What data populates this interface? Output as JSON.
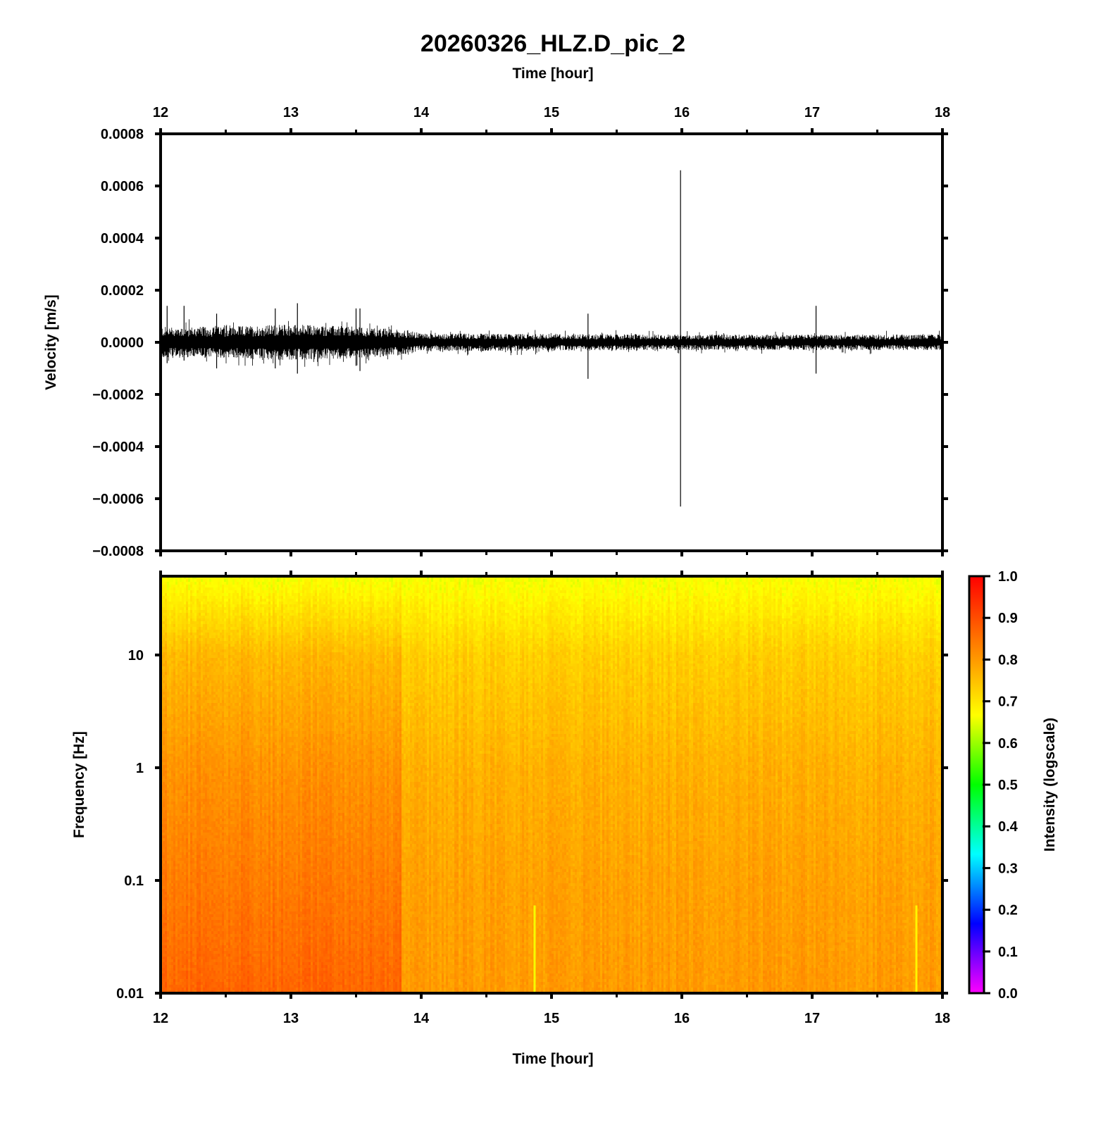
{
  "figure": {
    "title": "20260326_HLZ.D_pic_2",
    "top_xlabel": "Time [hour]",
    "bottom_xlabel": "Time [hour]"
  },
  "chart_data": [
    {
      "type": "line",
      "name": "seismogram",
      "ylabel": "Velocity [m/s]",
      "xlabel": "Time [hour]",
      "xlim": [
        12,
        18
      ],
      "ylim": [
        -0.0008,
        0.0008
      ],
      "x_ticks": [
        12,
        13,
        14,
        15,
        16,
        17,
        18
      ],
      "x_tick_labels": [
        "12",
        "13",
        "14",
        "15",
        "16",
        "17",
        "18"
      ],
      "y_ticks": [
        0.0008,
        0.0006,
        0.0004,
        0.0002,
        0.0,
        -0.0002,
        -0.0004,
        -0.0006,
        -0.0008
      ],
      "y_tick_labels": [
        "0.0008",
        "0.0006",
        "0.0004",
        "0.0002",
        "0.0000",
        "−0.0002",
        "−0.0004",
        "−0.0006",
        "−0.0008"
      ],
      "noise_envelope": {
        "t": [
          12.0,
          12.5,
          13.0,
          13.5,
          13.85,
          14.0,
          15.0,
          16.0,
          17.0,
          18.0
        ],
        "amp": [
          6e-05,
          6e-05,
          7e-05,
          6e-05,
          5e-05,
          3.5e-05,
          3.2e-05,
          3e-05,
          3e-05,
          3e-05
        ]
      },
      "spikes": [
        {
          "t": 12.05,
          "max": 0.00014,
          "min": -8e-05
        },
        {
          "t": 12.18,
          "max": 0.00014,
          "min": -7e-05
        },
        {
          "t": 12.43,
          "max": 0.00011,
          "min": -0.0001
        },
        {
          "t": 12.88,
          "max": 0.00013,
          "min": -0.0001
        },
        {
          "t": 13.05,
          "max": 0.00015,
          "min": -0.00012
        },
        {
          "t": 13.5,
          "max": 0.00013,
          "min": -9e-05
        },
        {
          "t": 13.53,
          "max": 0.00013,
          "min": -0.00011
        },
        {
          "t": 15.28,
          "max": 0.00011,
          "min": -0.00014
        },
        {
          "t": 15.99,
          "max": 0.00066,
          "min": -0.00063
        },
        {
          "t": 17.03,
          "max": 0.00014,
          "min": -0.00012
        }
      ]
    },
    {
      "type": "heatmap",
      "name": "spectrogram",
      "ylabel": "Frequency [Hz]",
      "xlabel": "Time [hour]",
      "xlim": [
        12,
        18
      ],
      "ylim": [
        0.01,
        50
      ],
      "yscale": "log",
      "x_ticks": [
        12,
        13,
        14,
        15,
        16,
        17,
        18
      ],
      "x_tick_labels": [
        "12",
        "13",
        "14",
        "15",
        "16",
        "17",
        "18"
      ],
      "y_ticks": [
        10,
        1,
        0.1,
        0.01
      ],
      "y_tick_labels": [
        "10",
        "1",
        "0.1",
        "0.01"
      ],
      "intensity_profile": {
        "freq": [
          0.01,
          0.1,
          1,
          10,
          50
        ],
        "intensity_early": [
          0.87,
          0.84,
          0.81,
          0.76,
          0.66
        ],
        "intensity_late": [
          0.8,
          0.79,
          0.77,
          0.73,
          0.66
        ],
        "transition_time": 13.85
      },
      "vertical_streaks": [
        {
          "t": 14.87,
          "intensity": 0.66
        },
        {
          "t": 17.8,
          "intensity": 0.68
        }
      ],
      "colorbar": {
        "label": "Intensity (logscale)",
        "range": [
          0.0,
          1.0
        ],
        "ticks": [
          1.0,
          0.9,
          0.8,
          0.7,
          0.6,
          0.5,
          0.4,
          0.3,
          0.2,
          0.1,
          0.0
        ],
        "tick_labels": [
          "1.0",
          "0.9",
          "0.8",
          "0.7",
          "0.6",
          "0.5",
          "0.4",
          "0.3",
          "0.2",
          "0.1",
          "0.0"
        ],
        "colormap": [
          "#ff00ff",
          "#0000ff",
          "#00ffff",
          "#00ff00",
          "#ffff00",
          "#ff8000",
          "#ff0000"
        ]
      }
    }
  ]
}
